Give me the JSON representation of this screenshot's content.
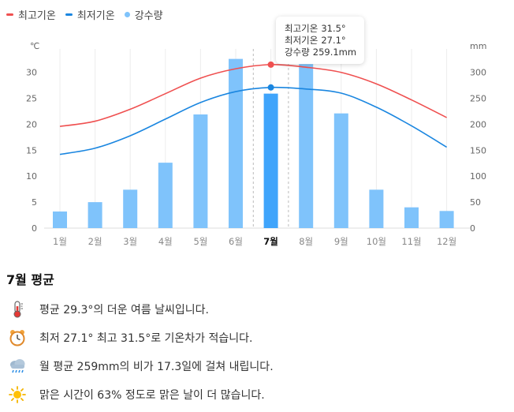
{
  "legend": [
    {
      "label": "최고기온",
      "color": "#ef5050",
      "shape": "line"
    },
    {
      "label": "최저기온",
      "color": "#1a86e0",
      "shape": "line"
    },
    {
      "label": "강수량",
      "color": "#7fc3fb",
      "shape": "dot"
    }
  ],
  "chart_data": {
    "type": "bar+line",
    "categories": [
      "1월",
      "2월",
      "3월",
      "4월",
      "5월",
      "6월",
      "7월",
      "8월",
      "9월",
      "10월",
      "11월",
      "12월"
    ],
    "highlight_category": "7월",
    "series": [
      {
        "name": "강수량",
        "type": "bar",
        "axis": "right",
        "unit": "mm",
        "values": [
          32,
          50,
          74,
          126,
          219,
          326,
          259.1,
          316,
          221,
          74,
          40,
          33
        ]
      },
      {
        "name": "최고기온",
        "type": "line",
        "axis": "left",
        "unit": "°",
        "values": [
          19.6,
          20.6,
          22.9,
          25.9,
          28.9,
          30.7,
          31.5,
          31.0,
          30.0,
          27.8,
          24.7,
          21.3
        ]
      },
      {
        "name": "최저기온",
        "type": "line",
        "axis": "left",
        "unit": "°",
        "values": [
          14.2,
          15.4,
          17.8,
          21.0,
          24.2,
          26.3,
          27.1,
          26.8,
          26.0,
          23.3,
          19.7,
          15.6
        ]
      }
    ],
    "y_left": {
      "label": "℃",
      "ticks": [
        0,
        5,
        10,
        15,
        20,
        25,
        30
      ],
      "range": [
        0,
        33
      ]
    },
    "y_right": {
      "label": "mm",
      "ticks": [
        0,
        50,
        100,
        150,
        200,
        250,
        300
      ],
      "range": [
        0,
        330
      ]
    },
    "grid": "vertical",
    "colors": {
      "bar": "#7fc3fb",
      "bar_highlight": "#3fa4fb",
      "high": "#ef5050",
      "low": "#1a86e0"
    }
  },
  "tooltip": {
    "rows": [
      {
        "label": "최고기온",
        "value": "31.5°"
      },
      {
        "label": "최저기온",
        "value": "27.1°"
      },
      {
        "label": "강수량",
        "value": "259.1mm"
      }
    ]
  },
  "summary": {
    "title": "7월 평균",
    "items": [
      {
        "icon": "thermometer-icon",
        "text": "평균 29.3°의 더운 여름 날씨입니다."
      },
      {
        "icon": "alarm-clock-icon",
        "text": "최저 27.1° 최고 31.5°로 기온차가 적습니다."
      },
      {
        "icon": "rain-cloud-icon",
        "text": "월 평균 259mm의 비가 17.3일에 걸쳐 내립니다."
      },
      {
        "icon": "sun-icon",
        "text": "맑은 시간이 63% 정도로 맑은 날이 더 많습니다."
      }
    ]
  }
}
